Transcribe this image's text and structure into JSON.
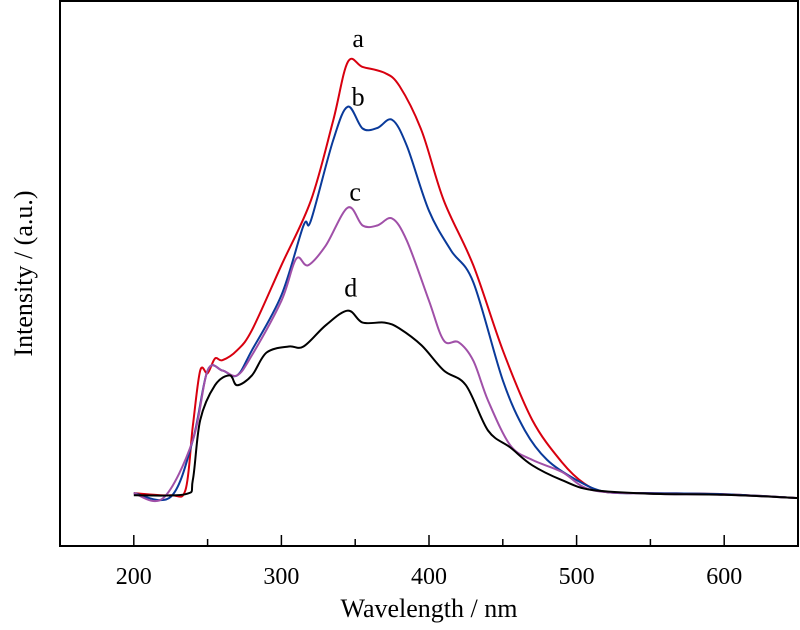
{
  "chart_data": {
    "type": "line",
    "title": "",
    "xlabel": "Wavelength / nm",
    "ylabel": "Intensity / (a.u.)",
    "xlim": [
      150,
      650
    ],
    "ylim": [
      0,
      100
    ],
    "x_major_ticks": [
      200,
      300,
      400,
      500,
      600
    ],
    "x_minor_ticks": [
      250,
      350,
      450,
      550
    ],
    "x_tick_labels": [
      "200",
      "300",
      "400",
      "500",
      "600"
    ],
    "y_ticks": [],
    "grid": false,
    "legend": "none",
    "series": [
      {
        "name": "a",
        "color": "#d8000f",
        "x": [
          200,
          225,
          235,
          240,
          245,
          250,
          255,
          260,
          270,
          280,
          300,
          320,
          335,
          345,
          355,
          370,
          380,
          395,
          410,
          430,
          450,
          470,
          490,
          505,
          520,
          550,
          600,
          650
        ],
        "y": [
          9.7,
          9.3,
          10.3,
          22,
          32.2,
          31.7,
          34.4,
          34.1,
          35.9,
          39.6,
          51.5,
          63.4,
          78,
          88.8,
          87.9,
          86.8,
          84.4,
          76.2,
          63.4,
          51.5,
          35.9,
          23.1,
          15.4,
          11.5,
          9.9,
          9.7,
          9.5,
          8.8
        ]
      },
      {
        "name": "b",
        "color": "#0a3a9a",
        "x": [
          200,
          225,
          240,
          250,
          260,
          270,
          280,
          300,
          315,
          320,
          335,
          345,
          355,
          365,
          375,
          385,
          400,
          415,
          430,
          450,
          465,
          480,
          500,
          520,
          550,
          600,
          650
        ],
        "y": [
          9.7,
          9.0,
          19.4,
          32.2,
          32.2,
          31.3,
          35.9,
          46,
          58.8,
          59.7,
          74.4,
          80.6,
          76.6,
          76.7,
          78.2,
          73.4,
          61.5,
          54.2,
          48.4,
          30.4,
          21.2,
          15.8,
          12.1,
          9.9,
          9.7,
          9.5,
          8.8
        ]
      },
      {
        "name": "c",
        "color": "#a050a8",
        "x": [
          200,
          220,
          240,
          250,
          260,
          270,
          280,
          300,
          310,
          318,
          330,
          345,
          355,
          365,
          375,
          385,
          400,
          410,
          420,
          430,
          440,
          455,
          470,
          490,
          510,
          550,
          600,
          650
        ],
        "y": [
          9.7,
          8.8,
          19.4,
          32.2,
          32.2,
          31.3,
          35,
          45,
          52.7,
          51.5,
          55.1,
          62.1,
          58.8,
          58.8,
          60.1,
          56,
          45,
          37.7,
          37.4,
          34,
          26.7,
          18.5,
          15.8,
          13.6,
          10.3,
          9.6,
          9.4,
          8.8
        ]
      },
      {
        "name": "d",
        "color": "#000000",
        "x": [
          200,
          235,
          240,
          245,
          255,
          265,
          270,
          280,
          290,
          305,
          315,
          330,
          345,
          355,
          370,
          380,
          395,
          410,
          425,
          440,
          455,
          470,
          490,
          510,
          550,
          600,
          650
        ],
        "y": [
          9.3,
          9.5,
          12.1,
          23.1,
          29.5,
          31.3,
          29.5,
          31.3,
          35.5,
          36.6,
          36.6,
          40.5,
          43.2,
          41,
          41,
          39.9,
          36.8,
          32.2,
          29.5,
          21.2,
          18.1,
          14.8,
          12.1,
          10.3,
          9.6,
          9.4,
          8.8
        ]
      }
    ],
    "annotations": [
      {
        "text": "a",
        "x": 352,
        "y": 91.6
      },
      {
        "text": "b",
        "x": 352,
        "y": 80.8
      },
      {
        "text": "c",
        "x": 350,
        "y": 63.4
      },
      {
        "text": "d",
        "x": 347,
        "y": 45.8
      }
    ]
  }
}
